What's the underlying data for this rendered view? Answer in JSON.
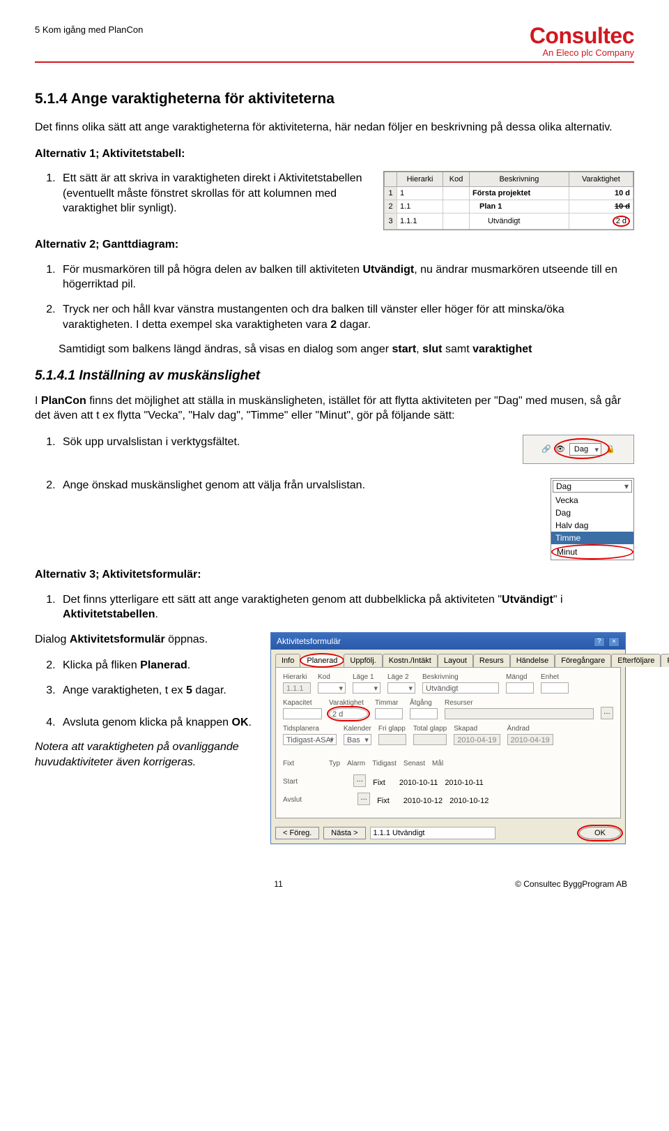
{
  "header": {
    "doc_title": "5 Kom igång med PlanCon",
    "brand": "Consultec",
    "brand_sub": "An Eleco plc Company"
  },
  "section": {
    "num_title": "5.1.4  Ange varaktigheterna för aktiviteterna",
    "intro": "Det finns olika sätt att ange varaktigheterna för aktiviteterna, här nedan följer en beskrivning på dessa olika alternativ.",
    "alt1_title": "Alternativ 1; Aktivitetstabell:",
    "alt1_item": "Ett sätt är att skriva in varaktigheten direkt i Aktivitetstabellen (eventuellt måste fönstret skrollas för att kolumnen med varaktighet blir synligt).",
    "alt2_title": "Alternativ 2; Ganttdiagram:",
    "alt2_item1": "För musmarkören till på högra delen av balken till aktiviteten Utvändigt, nu ändrar musmarkören utseende till en högerriktad pil.",
    "alt2_item2": "Tryck ner och håll kvar vänstra mustangenten och dra balken till vänster eller höger för att minska/öka varaktigheten. I detta exempel ska varaktigheten vara 2 dagar.",
    "alt2_para": "Samtidigt som balkens längd ändras, så visas en dialog som anger start, slut samt varaktighet"
  },
  "subsection": {
    "title": "5.1.4.1  Inställning av muskänslighet",
    "intro": "I PlanCon finns det möjlighet att ställa in muskänsligheten, istället för att flytta aktiviteten per \"Dag\" med musen, så går det även att t ex flytta \"Vecka\", \"Halv dag\", \"Timme\" eller \"Minut\", gör på följande sätt:",
    "item1": "Sök upp urvalslistan i verktygsfältet.",
    "item2": "Ange önskad muskänslighet genom att välja från urvalslistan."
  },
  "alt3": {
    "title": "Alternativ 3; Aktivitetsformulär:",
    "item1": "Det finns ytterligare ett sätt att ange varaktigheten genom att dubbelklicka på aktiviteten \"Utvändigt\" i Aktivitetstabellen.",
    "dialog_line": "Dialog Aktivitetsformulär öppnas.",
    "item2": "Klicka på fliken Planerad.",
    "item3": "Ange varaktigheten, t ex 5 dagar.",
    "item4": "Avsluta genom klicka på knappen OK.",
    "note": "Notera att varaktigheten på ovanliggande huvudaktiviteter även korrigeras."
  },
  "table": {
    "cols": [
      "Hierarki",
      "Kod",
      "Beskrivning",
      "Varaktighet"
    ],
    "rows": [
      {
        "n": "1",
        "h": "1",
        "kod": "",
        "desc": "Första projektet",
        "d": "10 d",
        "bold": true
      },
      {
        "n": "2",
        "h": "1.1",
        "kod": "",
        "desc": "Plan 1",
        "d": "10 d",
        "bold": true
      },
      {
        "n": "3",
        "h": "1.1.1",
        "kod": "",
        "desc": "Utvändigt",
        "d": "2 d",
        "bold": false,
        "circle": true
      }
    ]
  },
  "toolbar": {
    "selected": "Dag"
  },
  "dropdown": {
    "selected": "Dag",
    "options": [
      "Vecka",
      "Dag",
      "Halv dag",
      "Timme",
      "Minut"
    ],
    "highlight": "Timme",
    "circled": "Minut"
  },
  "dialog": {
    "title": "Aktivitetsformulär",
    "tabs": [
      "Info",
      "Planerad",
      "Uppfölj.",
      "Kostn./Intäkt",
      "Layout",
      "Resurs",
      "Händelse",
      "Föregångare",
      "Efterföljare",
      "Fakturor"
    ],
    "active_tab": "Planerad",
    "row1": {
      "Hierarki": "1.1.1",
      "Kod": "",
      "Läge 1": "",
      "Läge 2": "",
      "Beskrivning": "Utvändigt",
      "Mängd": "",
      "Enhet": ""
    },
    "row2": {
      "Kapacitet": "",
      "Varaktighet": "2 d",
      "Timmar": "",
      "Åtgång": "",
      "Resurser": ""
    },
    "row3": {
      "Tidsplanera": "Tidigast-ASA!",
      "Kalender": "Bas",
      "Fri glapp": "",
      "Total glapp": "",
      "Skapad": "2010-04-19",
      "Ändrad": "2010-04-19"
    },
    "row4": {
      "lbl": "Fixt",
      "Typ": "Fixt",
      "Alarm": "",
      "Tidigast": "2010-10-11",
      "Senast": "2010-10-11",
      "Mål": ""
    },
    "row5": {
      "Start": "",
      "dots": true
    },
    "row6": {
      "Avslut": "",
      "Typ": "Fixt",
      "v1": "2010-10-12",
      "v2": "2010-10-12"
    },
    "foot": {
      "prev": "< Föreg.",
      "next": "Nästa >",
      "path": "1.1.1  Utvändigt",
      "ok": "OK"
    }
  },
  "footer": {
    "page": "11",
    "copy": "© Consultec ByggProgram AB"
  }
}
